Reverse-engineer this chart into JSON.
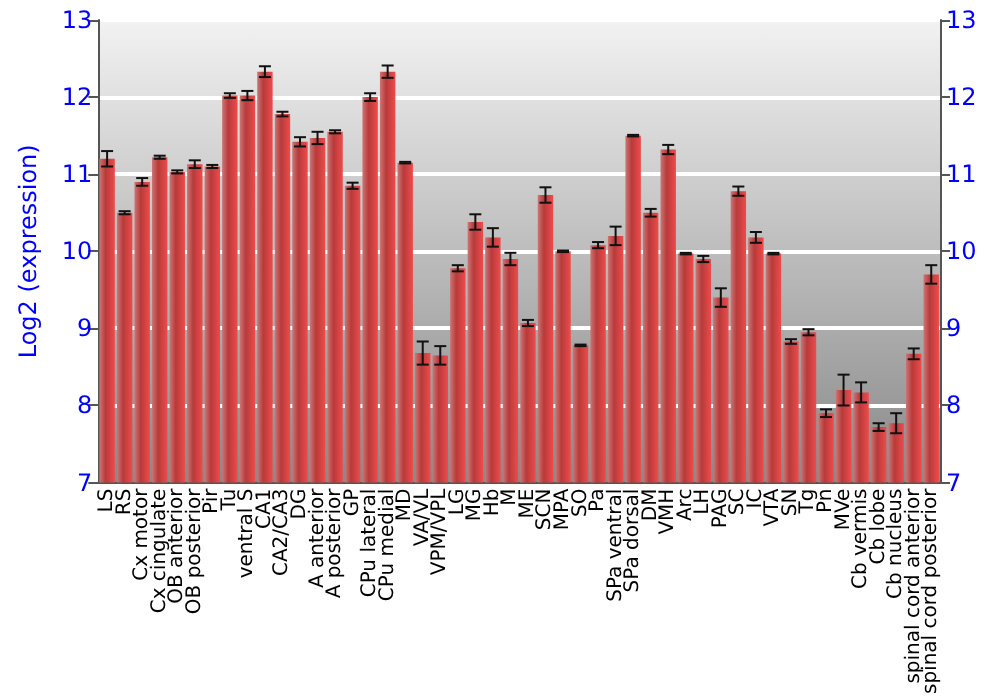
{
  "chart_data": {
    "type": "bar",
    "ylabel": "Log2 (expression)",
    "categories": [
      "LS",
      "RS",
      "Cx motor",
      "Cx cingulate",
      "OB anterior",
      "OB posterior",
      "Pir",
      "Tu",
      "ventral S",
      "CA1",
      "CA2/CA3",
      "DG",
      "A anterior",
      "A posterior",
      "GP",
      "CPu lateral",
      "CPu medial",
      "MD",
      "VA/VL",
      "VPM/VPL",
      "LG",
      "MG",
      "Hb",
      "M",
      "ME",
      "SCN",
      "MPA",
      "SO",
      "Pa",
      "SPa ventral",
      "SPa dorsal",
      "DM",
      "VMH",
      "Arc",
      "LH",
      "PAG",
      "SC",
      "IC",
      "VTA",
      "SN",
      "Tg",
      "Pn",
      "MVe",
      "Cb vermis",
      "Cb lobe",
      "Cb nucleus",
      "spinal cord anterior",
      "spinal cord posterior"
    ],
    "series": [
      {
        "color": "#b83a3a",
        "values": [
          11.2,
          10.5,
          10.9,
          11.22,
          11.03,
          11.13,
          11.1,
          12.02,
          12.02,
          12.33,
          11.78,
          11.42,
          11.47,
          11.55,
          10.85,
          12.0,
          12.33,
          11.15,
          8.68,
          8.65,
          9.78,
          10.38,
          10.18,
          9.9,
          9.07,
          10.73,
          10.0,
          8.78,
          10.08,
          10.2,
          11.5,
          10.5,
          11.32,
          9.97,
          9.9,
          9.4,
          10.78,
          10.18,
          9.97,
          8.83,
          8.95,
          7.9,
          8.2,
          8.17,
          7.72,
          7.77,
          8.67,
          9.7
        ],
        "errors": [
          0.1,
          0.02,
          0.05,
          0.02,
          0.02,
          0.05,
          0.02,
          0.03,
          0.06,
          0.07,
          0.03,
          0.06,
          0.08,
          0.02,
          0.04,
          0.05,
          0.08,
          0.01,
          0.15,
          0.12,
          0.04,
          0.1,
          0.12,
          0.08,
          0.04,
          0.1,
          0.01,
          0.01,
          0.04,
          0.12,
          0.01,
          0.05,
          0.06,
          0.01,
          0.04,
          0.12,
          0.06,
          0.07,
          0.01,
          0.03,
          0.04,
          0.05,
          0.2,
          0.13,
          0.05,
          0.13,
          0.07,
          0.12
        ]
      }
    ],
    "ylim": [
      7,
      13
    ],
    "yticks": [
      7,
      8,
      9,
      10,
      11,
      12,
      13
    ],
    "y2lim": [
      7,
      13
    ],
    "y2ticks": [
      7,
      8,
      9,
      10,
      11,
      12,
      13
    ],
    "grid": "y"
  }
}
